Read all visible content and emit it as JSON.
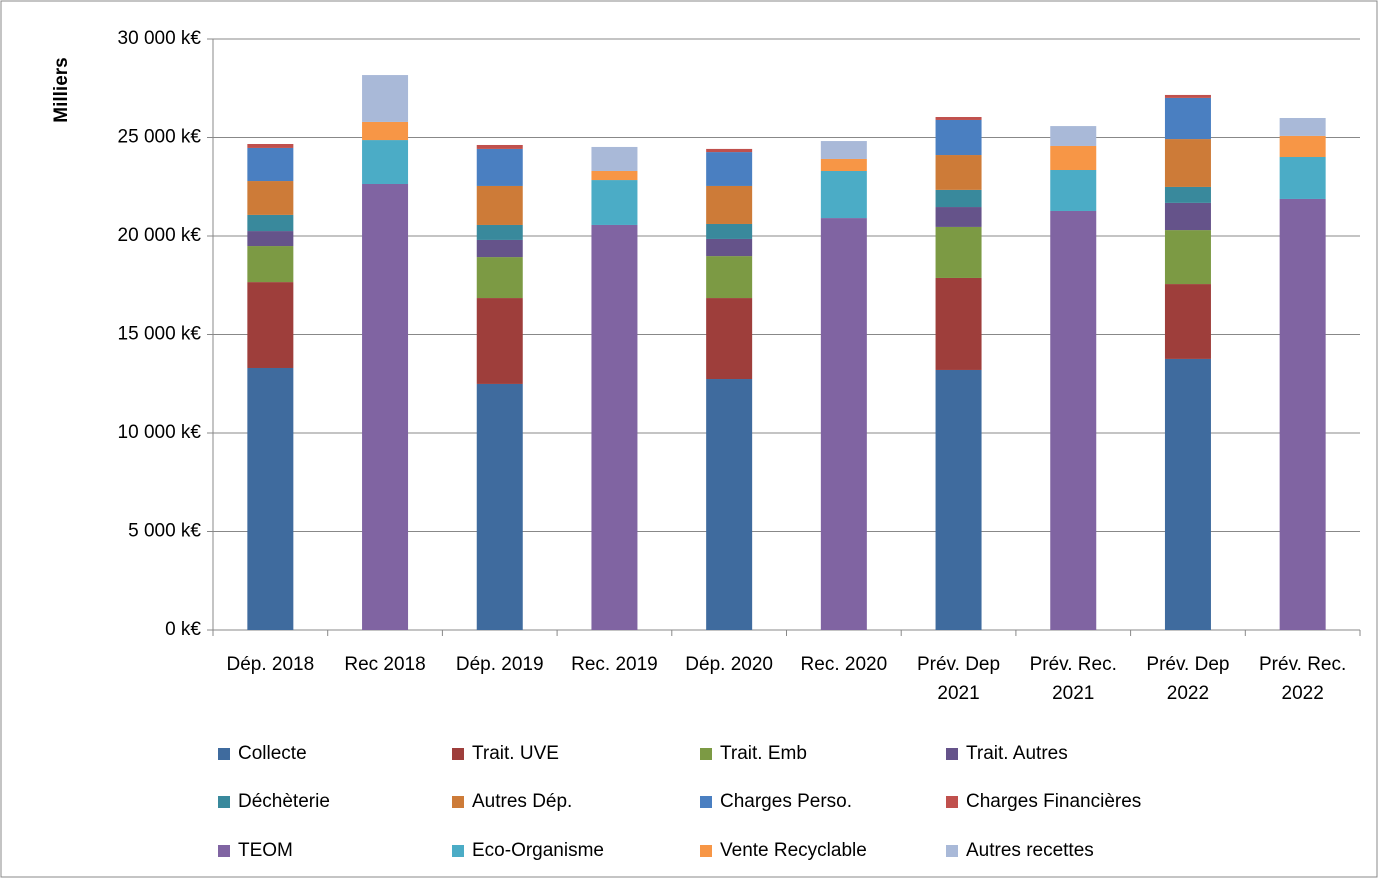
{
  "chart_data": {
    "type": "stacked_bar",
    "y_label": "Milliers",
    "categories": [
      "Dép. 2018",
      "Rec 2018",
      "Dép. 2019",
      "Rec. 2019",
      "Dép. 2020",
      "Rec. 2020",
      "Prév. Dep 2021",
      "Prév. Rec. 2021",
      "Prév. Dep 2022",
      "Prév. Rec. 2022"
    ],
    "ylim": [
      0,
      30000
    ],
    "yticks": [
      {
        "value": 0,
        "label": "0 k€"
      },
      {
        "value": 5000,
        "label": "5 000 k€"
      },
      {
        "value": 10000,
        "label": "10 000 k€"
      },
      {
        "value": 15000,
        "label": "15 000 k€"
      },
      {
        "value": 20000,
        "label": "20 000 k€"
      },
      {
        "value": 25000,
        "label": "25 000 k€"
      },
      {
        "value": 30000,
        "label": "30 000 k€"
      }
    ],
    "grid": true,
    "legend": "bottom",
    "series": [
      {
        "name": "Collecte",
        "color": "#3f6b9e",
        "values": [
          13300,
          null,
          12490,
          null,
          12740,
          null,
          13200,
          null,
          13760,
          null
        ]
      },
      {
        "name": "Trait. UVE",
        "color": "#9e3e3b",
        "values": [
          4360,
          null,
          4360,
          null,
          4110,
          null,
          4670,
          null,
          3800,
          null
        ]
      },
      {
        "name": "Trait. Emb",
        "color": "#7c9a44",
        "values": [
          1830,
          null,
          2080,
          null,
          2130,
          null,
          2590,
          null,
          2740,
          null
        ]
      },
      {
        "name": "Trait. Autres",
        "color": "#65538a",
        "values": [
          760,
          null,
          870,
          null,
          870,
          null,
          1010,
          null,
          1380,
          null
        ]
      },
      {
        "name": "Déchèterie",
        "color": "#39899c",
        "values": [
          820,
          null,
          760,
          null,
          760,
          null,
          870,
          null,
          810,
          null
        ]
      },
      {
        "name": "Autres Dép.",
        "color": "#cd7b38",
        "values": [
          1720,
          null,
          1980,
          null,
          1930,
          null,
          1770,
          null,
          2430,
          null
        ]
      },
      {
        "name": "Charges Perso.",
        "color": "#4a7fc1",
        "values": [
          1680,
          null,
          1880,
          null,
          1720,
          null,
          1780,
          null,
          2090,
          null
        ]
      },
      {
        "name": "Charges Financières",
        "color": "#c0504d",
        "values": [
          200,
          null,
          200,
          null,
          160,
          null,
          150,
          null,
          150,
          null
        ]
      },
      {
        "name": "TEOM",
        "color": "#8064a2",
        "values": [
          null,
          22640,
          null,
          20560,
          null,
          20910,
          null,
          21270,
          null,
          21880
        ]
      },
      {
        "name": "Eco-Organisme",
        "color": "#4bacc6",
        "values": [
          null,
          2230,
          null,
          2280,
          null,
          2390,
          null,
          2080,
          null,
          2130
        ]
      },
      {
        "name": "Vente Recyclable",
        "color": "#f79646",
        "values": [
          null,
          920,
          null,
          460,
          null,
          610,
          null,
          1220,
          null,
          1070
        ]
      },
      {
        "name": "Autres recettes",
        "color": "#a9b9d8",
        "values": [
          null,
          2380,
          null,
          1220,
          null,
          910,
          null,
          1010,
          null,
          910
        ]
      }
    ]
  }
}
